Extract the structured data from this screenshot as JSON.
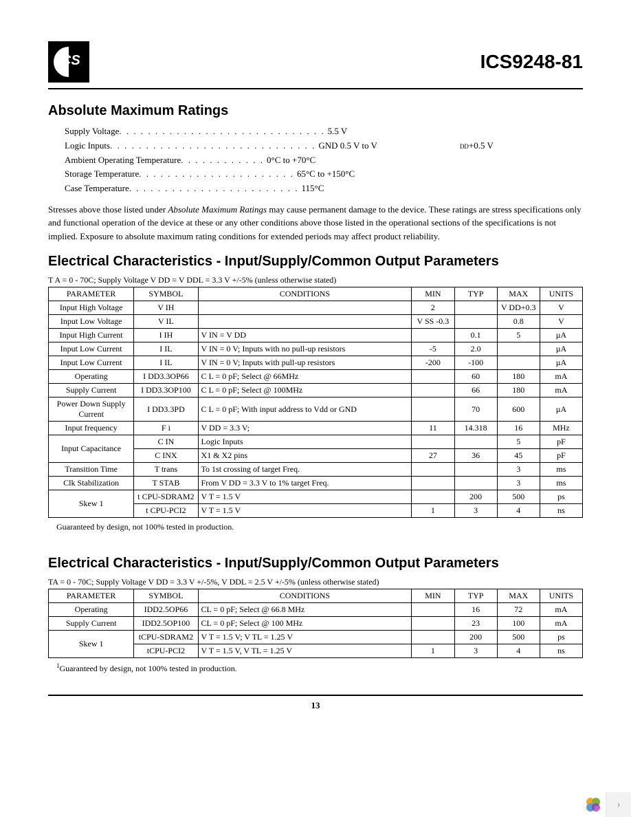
{
  "header": {
    "part_number": "ICS9248-81"
  },
  "abs_max": {
    "title": "Absolute Maximum Ratings",
    "items": [
      {
        "label": "Supply Voltage",
        "dots": ". . . . . . . . . . . . . . . . . . . . . . . . . . . . .",
        "value": "5.5 V"
      },
      {
        "label": "Logic Inputs",
        "dots": ". . . . . . . . . . . . . . . . . . . . . . . . . . . . .",
        "value": "GND 0.5 V to  V",
        "suffix_sub": "DD",
        "suffix_val": " +0.5 V"
      },
      {
        "label": "Ambient Operating Temperature",
        "dots": ". . . . . . . . . . . .",
        "value": "0°C to +70°C"
      },
      {
        "label": "Storage Temperature",
        "dots": ". . . . . . . . . . . . . . . . . . . . . .",
        "value": "65°C to +150°C"
      },
      {
        "label": "Case Temperature",
        "dots": ". . . . . . . . . . . . . . . . . . . . . . . .",
        "value": "115°C"
      }
    ],
    "disclaimer_pre": "Stresses above those listed under ",
    "disclaimer_ital": "Absolute Maximum Ratings",
    "disclaimer_post": " may cause permanent damage to the device. These ratings are stress specifications only and functional operation of the device at these or any other conditions above those listed in the operational sections of the specifications is not implied. Exposure to absolute maximum rating conditions for extended periods may affect product reliability."
  },
  "table1": {
    "title": "Electrical Characteristics - Input/Supply/Common Output Parameters",
    "cond": "T A = 0 - 70C; Supply Voltage V DD = V DDL = 3.3 V +/-5% (unless otherwise stated)",
    "columns": [
      "PARAMETER",
      "SYMBOL",
      "CONDITIONS",
      "MIN",
      "TYP",
      "MAX",
      "UNITS"
    ],
    "rows": [
      {
        "param": "Input High Voltage",
        "symbol": "V IH",
        "cond": "",
        "min": "2",
        "typ": "",
        "max": "V DD+0.3",
        "units": "V"
      },
      {
        "param": "Input Low Voltage",
        "symbol": "V IL",
        "cond": "",
        "min": "V SS -0.3",
        "typ": "",
        "max": "0.8",
        "units": "V"
      },
      {
        "param": "Input High Current",
        "symbol": "I IH",
        "cond": "V IN = V DD",
        "min": "",
        "typ": "0.1",
        "max": "5",
        "units": "µA"
      },
      {
        "param": "Input Low Current",
        "symbol": "I IL",
        "cond": "V IN = 0 V; Inputs with no pull-up resistors",
        "min": "-5",
        "typ": "2.0",
        "max": "",
        "units": "µA"
      },
      {
        "param": "Input Low Current",
        "symbol": "I IL",
        "cond": "V IN = 0 V; Inputs with pull-up resistors",
        "min": "-200",
        "typ": "-100",
        "max": "",
        "units": "µA"
      },
      {
        "param": "Operating",
        "symbol": "I DD3.3OP66",
        "cond": "C L = 0 pF; Select @ 66MHz",
        "min": "",
        "typ": "60",
        "max": "180",
        "units": "mA"
      },
      {
        "param": "Supply Current",
        "symbol": "I DD3.3OP100",
        "cond": "C L = 0 pF; Select @ 100MHz",
        "min": "",
        "typ": "66",
        "max": "180",
        "units": "mA"
      },
      {
        "param": "Power Down Supply Current",
        "symbol": "I DD3.3PD",
        "cond": "C L = 0 pF; With input address to Vdd or GND",
        "min": "",
        "typ": "70",
        "max": "600",
        "units": "µA"
      },
      {
        "param": "Input frequency",
        "symbol": "F i",
        "cond": "V DD = 3.3 V;",
        "min": "11",
        "typ": "14.318",
        "max": "16",
        "units": "MHz"
      },
      {
        "param": "Input Capacitance",
        "symbol": "C IN",
        "cond": "Logic Inputs",
        "min": "",
        "typ": "",
        "max": "5",
        "units": "pF",
        "rowspan": 2
      },
      {
        "param": "",
        "symbol": "C INX",
        "cond": "X1 & X2 pins",
        "min": "27",
        "typ": "36",
        "max": "45",
        "units": "pF",
        "skip_param": true
      },
      {
        "param": "Transition Time",
        "symbol": "T trans",
        "cond": "To 1st crossing of target Freq.",
        "min": "",
        "typ": "",
        "max": "3",
        "units": "ms"
      },
      {
        "param": "Clk Stabilization",
        "symbol": "T STAB",
        "cond": "From V DD = 3.3 V to 1% target Freq.",
        "min": "",
        "typ": "",
        "max": "3",
        "units": "ms"
      },
      {
        "param": "Skew 1",
        "symbol": "t CPU-SDRAM2",
        "cond": "V T = 1.5 V",
        "min": "",
        "typ": "200",
        "max": "500",
        "units": "ps",
        "rowspan": 2
      },
      {
        "param": "",
        "symbol": "t CPU-PCI2",
        "cond": "V T = 1.5 V",
        "min": "1",
        "typ": "3",
        "max": "4",
        "units": "ns",
        "skip_param": true
      }
    ],
    "footnote": "Guaranteed by design, not 100% tested in production."
  },
  "table2": {
    "title": "Electrical Characteristics - Input/Supply/Common Output Parameters",
    "cond": "TA = 0 - 70C; Supply Voltage V DD = 3.3 V +/-5%, V DDL = 2.5 V +/-5% (unless otherwise stated)",
    "columns": [
      "PARAMETER",
      "SYMBOL",
      "CONDITIONS",
      "MIN",
      "TYP",
      "MAX",
      "UNITS"
    ],
    "rows": [
      {
        "param": "Operating",
        "symbol": "IDD2.5OP66",
        "cond": "CL = 0 pF; Select @ 66.8 MHz",
        "min": "",
        "typ": "16",
        "max": "72",
        "units": "mA"
      },
      {
        "param": "Supply Current",
        "symbol": "IDD2.5OP100",
        "cond": "CL = 0 pF; Select @ 100 MHz",
        "min": "",
        "typ": "23",
        "max": "100",
        "units": "mA"
      },
      {
        "param": "Skew 1",
        "symbol": "tCPU-SDRAM2",
        "cond": "V T = 1.5 V; V TL = 1.25 V",
        "min": "",
        "typ": "200",
        "max": "500",
        "units": "ps",
        "rowspan": 2
      },
      {
        "param": "",
        "symbol": "tCPU-PCI2",
        "cond": "V T = 1.5 V, V TL = 1.25 V",
        "min": "1",
        "typ": "3",
        "max": "4",
        "units": "ns",
        "skip_param": true
      }
    ],
    "footnote_sup": "1",
    "footnote": "Guaranteed by design, not 100% tested in production."
  },
  "page_number": "13",
  "corner": {
    "arrow": "›"
  }
}
